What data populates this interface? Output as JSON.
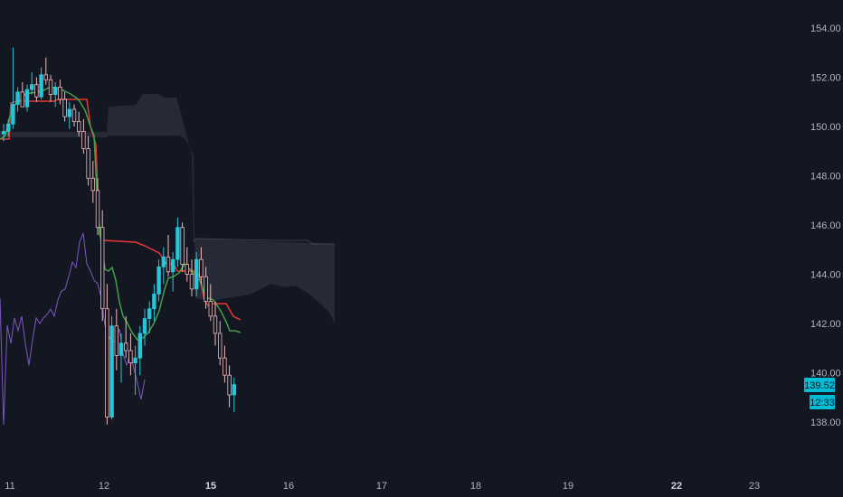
{
  "chart_data": {
    "type": "candlestick",
    "y_axis": {
      "ticks": [
        "154.00",
        "152.00",
        "150.00",
        "148.00",
        "146.00",
        "144.00",
        "142.00",
        "140.00",
        "138.00"
      ],
      "range": [
        137,
        155
      ]
    },
    "x_axis": {
      "ticks": [
        {
          "label": "11",
          "bold": false
        },
        {
          "label": "12",
          "bold": false
        },
        {
          "label": "15",
          "bold": true
        },
        {
          "label": "16",
          "bold": false
        },
        {
          "label": "17",
          "bold": false
        },
        {
          "label": "18",
          "bold": false
        },
        {
          "label": "19",
          "bold": false
        },
        {
          "label": "22",
          "bold": true
        },
        {
          "label": "23",
          "bold": false
        }
      ]
    },
    "last_price": "139.52",
    "countdown": "12:33",
    "candles": [
      [
        149.7,
        150.1,
        149.4,
        149.8
      ],
      [
        149.8,
        150.3,
        149.6,
        150.1
      ],
      [
        150.1,
        153.2,
        149.9,
        150.9
      ],
      [
        150.9,
        151.6,
        150.6,
        151.4
      ],
      [
        151.4,
        151.8,
        150.9,
        150.8
      ],
      [
        150.8,
        151.7,
        150.6,
        151.5
      ],
      [
        151.5,
        152.2,
        151.3,
        151.7
      ],
      [
        151.7,
        152.0,
        151.0,
        151.2
      ],
      [
        151.2,
        152.4,
        151.1,
        152.1
      ],
      [
        152.1,
        152.8,
        151.7,
        151.9
      ],
      [
        151.9,
        152.1,
        151.0,
        151.3
      ],
      [
        151.3,
        151.8,
        150.8,
        151.6
      ],
      [
        151.6,
        151.9,
        150.9,
        151.1
      ],
      [
        151.1,
        151.4,
        150.2,
        150.4
      ],
      [
        150.4,
        151.0,
        149.9,
        150.7
      ],
      [
        150.7,
        150.9,
        150.0,
        150.2
      ],
      [
        150.2,
        150.6,
        149.6,
        149.8
      ],
      [
        149.8,
        150.3,
        148.9,
        149.1
      ],
      [
        149.1,
        149.6,
        147.6,
        147.9
      ],
      [
        147.9,
        148.6,
        146.9,
        147.4
      ],
      [
        147.4,
        147.9,
        145.6,
        145.9
      ],
      [
        145.9,
        146.6,
        142.1,
        142.6
      ],
      [
        142.6,
        143.6,
        137.9,
        138.2
      ],
      [
        138.2,
        142.3,
        138.1,
        141.9
      ],
      [
        141.9,
        142.6,
        140.1,
        140.7
      ],
      [
        140.7,
        141.6,
        139.6,
        141.2
      ],
      [
        141.2,
        142.3,
        140.6,
        140.9
      ],
      [
        140.9,
        141.6,
        139.9,
        140.4
      ],
      [
        140.4,
        141.1,
        139.1,
        140.6
      ],
      [
        140.6,
        141.9,
        139.9,
        141.6
      ],
      [
        141.6,
        142.6,
        141.1,
        142.2
      ],
      [
        142.2,
        142.9,
        141.6,
        142.6
      ],
      [
        142.6,
        143.6,
        142.1,
        143.2
      ],
      [
        143.2,
        144.6,
        142.9,
        144.3
      ],
      [
        144.3,
        145.1,
        143.6,
        144.7
      ],
      [
        144.7,
        145.6,
        143.9,
        144.1
      ],
      [
        144.1,
        144.9,
        143.3,
        144.6
      ],
      [
        144.6,
        146.3,
        144.3,
        145.9
      ],
      [
        145.9,
        146.1,
        144.1,
        144.4
      ],
      [
        144.4,
        145.1,
        143.7,
        144.0
      ],
      [
        144.0,
        144.6,
        143.1,
        143.4
      ],
      [
        143.4,
        144.9,
        143.1,
        144.6
      ],
      [
        144.6,
        145.1,
        143.6,
        143.9
      ],
      [
        143.9,
        144.3,
        142.6,
        142.9
      ],
      [
        142.9,
        143.6,
        142.1,
        142.3
      ],
      [
        142.3,
        142.9,
        141.1,
        141.6
      ],
      [
        141.6,
        142.1,
        140.3,
        140.6
      ],
      [
        140.6,
        141.1,
        139.6,
        139.9
      ],
      [
        139.9,
        140.3,
        138.6,
        139.1
      ],
      [
        139.1,
        139.8,
        138.4,
        139.52
      ]
    ]
  }
}
